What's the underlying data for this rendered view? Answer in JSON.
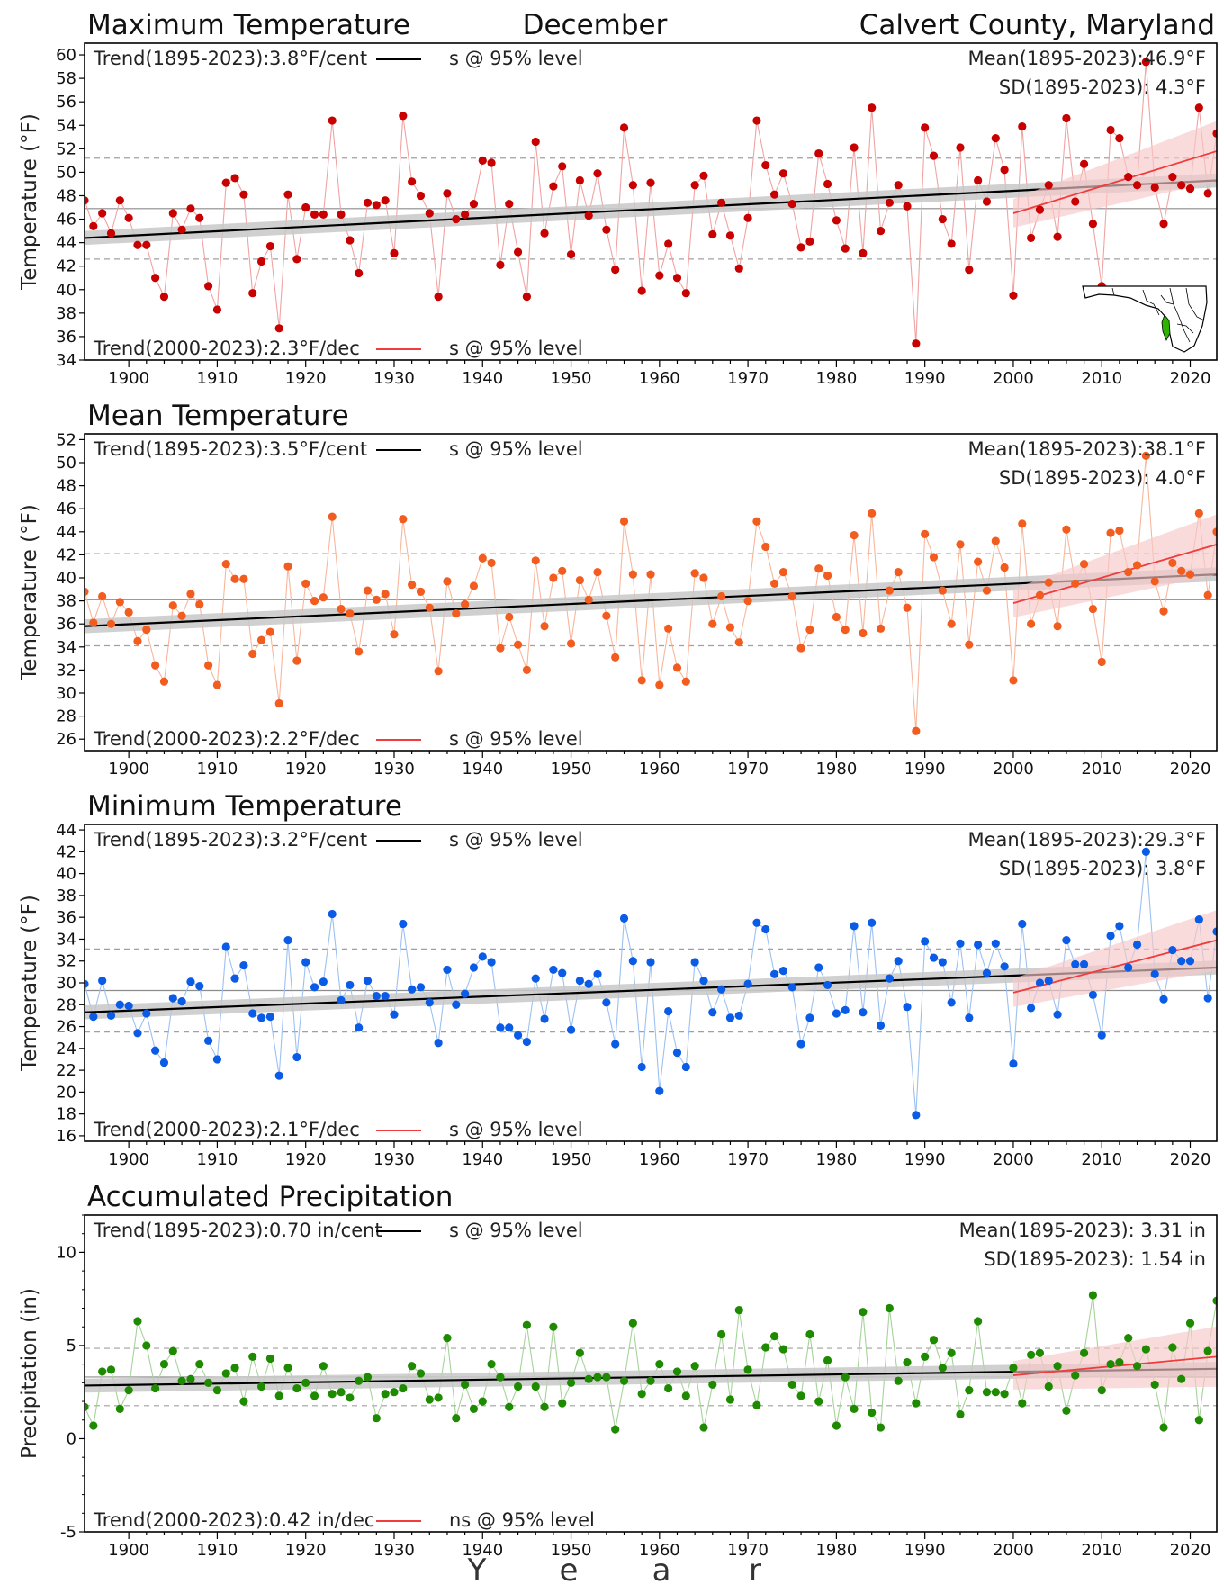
{
  "header": {
    "title_left": "Maximum Temperature",
    "title_center": "December",
    "title_right": "Calvert County, Maryland"
  },
  "xaxis": {
    "letters": [
      "Y",
      "e",
      "a",
      "r"
    ],
    "ticks": [
      1900,
      1910,
      1920,
      1930,
      1940,
      1950,
      1960,
      1970,
      1980,
      1990,
      2000,
      2010,
      2020
    ]
  },
  "colors": {
    "max": "#c80000",
    "max_line": "#f0a3a3",
    "mean": "#f25c1f",
    "mean_line": "#f7b79c",
    "min": "#0a5ce6",
    "min_line": "#9cc1f2",
    "precip": "#1e8a00",
    "precip_line": "#a6d39a",
    "recent_trend": "#f03c3c",
    "recent_band": "#f8c8c8",
    "long_trend": "#000000",
    "long_band": "#c8c8c8",
    "map_highlight": "#2db300"
  },
  "inset_map": {
    "icon": "maryland-county-map-icon"
  },
  "chart_data": [
    {
      "type": "scatter",
      "title": "Maximum Temperature",
      "ylabel": "Temperature (°F)",
      "ylim": [
        34,
        61
      ],
      "yticks": [
        34,
        36,
        38,
        40,
        42,
        44,
        46,
        48,
        50,
        52,
        54,
        56,
        58,
        60
      ],
      "xlim": [
        1895,
        2023
      ],
      "grid": false,
      "trend_long": {
        "label": "Trend(1895-2023):",
        "value": "3.8°F/cent",
        "sig": "s @ 95% level",
        "y_start": 44.4,
        "y_end": 49.3
      },
      "trend_recent": {
        "label": "Trend(2000-2023):",
        "value": "2.3°F/dec",
        "sig": "s @ 95% level",
        "y_start": 46.5,
        "y_end": 51.8
      },
      "mean_text": "Mean(1895-2023):46.9°F",
      "sd_text": "SD(1895-2023): 4.3°F",
      "mean": 46.9,
      "sd_upper": 51.2,
      "sd_lower": 42.6,
      "series": [
        {
          "x_start": 1895,
          "values": [
            47.6,
            45.4,
            46.5,
            44.8,
            47.6,
            46.1,
            43.8,
            43.8,
            41.0,
            39.4,
            46.5,
            45.1,
            46.9,
            46.1,
            40.3,
            38.3,
            49.1,
            49.5,
            48.1,
            39.7,
            42.4,
            43.7,
            36.7,
            48.1,
            42.6,
            47.0,
            46.4,
            46.4,
            54.4,
            46.4,
            44.2,
            41.4,
            47.4,
            47.2,
            47.6,
            43.1,
            54.8,
            49.2,
            48.0,
            46.5,
            39.4,
            48.2,
            46.0,
            46.4,
            47.3,
            51.0,
            50.8,
            42.1,
            47.3,
            43.2,
            39.4,
            52.6,
            44.8,
            48.8,
            50.5,
            43.0,
            49.3,
            46.3,
            49.9,
            45.1,
            41.7,
            53.8,
            48.9,
            39.9,
            49.1,
            41.2,
            43.9,
            41.0,
            39.7,
            48.9,
            49.7,
            44.7,
            47.4,
            44.6,
            41.8,
            46.1,
            54.4,
            50.6,
            48.1,
            49.9,
            47.3,
            43.6,
            44.1,
            51.6,
            49.0,
            45.9,
            43.5,
            52.1,
            43.1,
            55.5,
            45.0,
            47.4,
            48.9,
            47.1,
            35.4,
            53.8,
            51.4,
            46.0,
            43.9,
            52.1,
            41.7,
            49.3,
            47.5,
            52.9,
            50.2,
            39.5,
            53.9,
            44.4,
            46.8,
            48.9,
            44.5,
            54.6,
            47.5,
            50.7,
            45.6,
            40.3,
            53.6,
            52.9,
            49.6,
            48.9,
            59.4,
            48.7,
            45.6,
            49.6,
            48.9,
            48.6,
            55.5,
            48.2,
            53.3
          ]
        }
      ]
    },
    {
      "type": "scatter",
      "title": "Mean Temperature",
      "ylabel": "Temperature (°F)",
      "ylim": [
        25,
        52.5
      ],
      "yticks": [
        26,
        28,
        30,
        32,
        34,
        36,
        38,
        40,
        42,
        44,
        46,
        48,
        50,
        52
      ],
      "xlim": [
        1895,
        2023
      ],
      "grid": false,
      "trend_long": {
        "label": "Trend(1895-2023):",
        "value": "3.5°F/cent",
        "sig": "s @ 95% level",
        "y_start": 35.8,
        "y_end": 40.3
      },
      "trend_recent": {
        "label": "Trend(2000-2023):",
        "value": "2.2°F/dec",
        "sig": "s @ 95% level",
        "y_start": 37.8,
        "y_end": 42.9
      },
      "mean_text": "Mean(1895-2023):38.1°F",
      "sd_text": "SD(1895-2023): 4.0°F",
      "mean": 38.1,
      "sd_upper": 42.1,
      "sd_lower": 34.1,
      "series": [
        {
          "x_start": 1895,
          "values": [
            38.8,
            36.1,
            38.4,
            36.0,
            37.9,
            37.0,
            34.5,
            35.5,
            32.4,
            31.0,
            37.6,
            36.7,
            38.6,
            37.7,
            32.4,
            30.7,
            41.2,
            39.9,
            39.9,
            33.4,
            34.6,
            35.3,
            29.1,
            41.0,
            32.8,
            39.5,
            38.0,
            38.3,
            45.3,
            37.3,
            36.9,
            33.6,
            38.9,
            38.1,
            38.6,
            35.1,
            45.1,
            39.4,
            38.8,
            37.4,
            31.9,
            39.7,
            36.9,
            37.7,
            39.3,
            41.7,
            41.3,
            33.9,
            36.6,
            34.2,
            32.0,
            41.5,
            35.8,
            40.0,
            40.6,
            34.3,
            39.8,
            38.1,
            40.5,
            36.7,
            33.1,
            44.9,
            40.3,
            31.1,
            40.3,
            30.7,
            35.6,
            32.2,
            31.0,
            40.4,
            40.0,
            36.0,
            38.4,
            35.7,
            34.4,
            38.0,
            44.9,
            42.7,
            39.5,
            40.5,
            38.4,
            33.9,
            35.5,
            40.8,
            40.2,
            36.6,
            35.5,
            43.7,
            35.2,
            45.6,
            35.6,
            38.9,
            40.5,
            37.4,
            26.7,
            43.8,
            41.8,
            38.9,
            36.0,
            42.9,
            34.2,
            41.4,
            38.9,
            43.2,
            40.9,
            31.1,
            44.7,
            36.0,
            38.5,
            39.6,
            35.8,
            44.2,
            39.5,
            41.2,
            37.3,
            32.7,
            43.9,
            44.1,
            40.5,
            41.1,
            50.6,
            39.7,
            37.1,
            41.3,
            40.6,
            40.3,
            45.6,
            38.5,
            44.0
          ]
        }
      ]
    },
    {
      "type": "scatter",
      "title": "Minimum Temperature",
      "ylabel": "Temperature (°F)",
      "ylim": [
        15.5,
        44.5
      ],
      "yticks": [
        16,
        18,
        20,
        22,
        24,
        26,
        28,
        30,
        32,
        34,
        36,
        38,
        40,
        42,
        44
      ],
      "xlim": [
        1895,
        2023
      ],
      "grid": false,
      "trend_long": {
        "label": "Trend(1895-2023):",
        "value": "3.2°F/cent",
        "sig": "s @ 95% level",
        "y_start": 27.3,
        "y_end": 31.4
      },
      "trend_recent": {
        "label": "Trend(2000-2023):",
        "value": "2.1°F/dec",
        "sig": "s @ 95% level",
        "y_start": 29.1,
        "y_end": 33.9
      },
      "mean_text": "Mean(1895-2023):29.3°F",
      "sd_text": "SD(1895-2023): 3.8°F",
      "mean": 29.3,
      "sd_upper": 33.1,
      "sd_lower": 25.5,
      "series": [
        {
          "x_start": 1895,
          "values": [
            29.9,
            26.9,
            30.2,
            27.0,
            28.0,
            27.9,
            25.4,
            27.2,
            23.8,
            22.7,
            28.6,
            28.3,
            30.1,
            29.7,
            24.7,
            23.0,
            33.3,
            30.4,
            31.6,
            27.2,
            26.8,
            26.9,
            21.5,
            33.9,
            23.2,
            31.9,
            29.6,
            30.1,
            36.3,
            28.4,
            29.8,
            25.9,
            30.2,
            28.8,
            28.8,
            27.1,
            35.4,
            29.4,
            29.6,
            28.2,
            24.5,
            31.2,
            28.0,
            29.0,
            31.4,
            32.4,
            31.9,
            25.9,
            25.9,
            25.2,
            24.6,
            30.4,
            26.7,
            31.2,
            30.9,
            25.7,
            30.2,
            29.9,
            30.8,
            28.2,
            24.4,
            35.9,
            32.0,
            22.3,
            31.9,
            20.1,
            27.4,
            23.6,
            22.3,
            31.9,
            30.2,
            27.3,
            29.4,
            26.8,
            27.0,
            29.9,
            35.5,
            34.9,
            30.8,
            31.1,
            29.6,
            24.4,
            26.8,
            31.4,
            29.8,
            27.2,
            27.5,
            35.2,
            27.3,
            35.5,
            26.1,
            30.4,
            32.0,
            27.8,
            17.9,
            33.8,
            32.3,
            31.9,
            28.2,
            33.6,
            26.8,
            33.5,
            30.9,
            33.6,
            31.5,
            22.6,
            35.4,
            27.7,
            30.0,
            30.2,
            27.1,
            33.9,
            31.7,
            31.7,
            28.9,
            25.2,
            34.3,
            35.2,
            31.4,
            33.5,
            42.0,
            30.8,
            28.5,
            33.0,
            32.0,
            32.0,
            35.8,
            28.6,
            34.7
          ]
        }
      ]
    },
    {
      "type": "scatter",
      "title": "Accumulated Precipitation",
      "ylabel": "Precipitation (in)",
      "ylim": [
        -5,
        12
      ],
      "yticks": [
        -5,
        0,
        5,
        10
      ],
      "xlim": [
        1895,
        2023
      ],
      "grid": false,
      "trend_long": {
        "label": "Trend(1895-2023):",
        "value": "0.70 in/cent",
        "sig": "s @ 95% level",
        "y_start": 2.85,
        "y_end": 3.75
      },
      "trend_recent": {
        "label": "Trend(2000-2023):",
        "value": "0.42 in/dec",
        "sig": "ns @ 95% level",
        "y_start": 3.4,
        "y_end": 4.4
      },
      "mean_text": "Mean(1895-2023): 3.31 in",
      "sd_text": "SD(1895-2023): 1.54 in",
      "mean": 3.31,
      "sd_upper": 4.85,
      "sd_lower": 1.77,
      "series": [
        {
          "x_start": 1895,
          "values": [
            1.7,
            0.7,
            3.6,
            3.7,
            1.6,
            2.6,
            6.3,
            5.0,
            2.7,
            4.0,
            4.7,
            3.1,
            3.2,
            4.0,
            3.0,
            2.6,
            3.5,
            3.8,
            2.0,
            4.4,
            2.8,
            4.3,
            2.3,
            3.8,
            2.7,
            3.0,
            2.3,
            3.9,
            2.4,
            2.5,
            2.2,
            3.1,
            3.3,
            1.1,
            2.4,
            2.5,
            2.7,
            3.9,
            3.5,
            2.1,
            2.2,
            5.4,
            1.1,
            2.9,
            1.6,
            2.0,
            4.0,
            3.3,
            1.7,
            2.8,
            6.1,
            2.8,
            1.7,
            6.0,
            1.9,
            3.0,
            4.6,
            3.2,
            3.3,
            3.3,
            0.5,
            3.1,
            6.2,
            2.4,
            3.1,
            4.0,
            2.7,
            3.6,
            2.3,
            3.9,
            0.6,
            2.9,
            5.6,
            2.1,
            6.9,
            3.7,
            1.8,
            4.9,
            5.5,
            4.8,
            2.9,
            2.3,
            5.6,
            2.0,
            4.2,
            0.7,
            3.3,
            1.6,
            6.8,
            1.4,
            0.6,
            7.0,
            3.1,
            4.1,
            1.9,
            4.4,
            5.3,
            3.8,
            4.6,
            1.3,
            2.6,
            6.3,
            2.5,
            2.5,
            2.4,
            3.8,
            1.9,
            4.5,
            4.6,
            2.8,
            3.9,
            1.5,
            3.4,
            4.6,
            7.7,
            2.6,
            4.0,
            4.1,
            5.4,
            3.9,
            4.8,
            2.9,
            0.6,
            4.9,
            3.2,
            6.2,
            1.0,
            4.7,
            7.4
          ]
        }
      ]
    }
  ]
}
